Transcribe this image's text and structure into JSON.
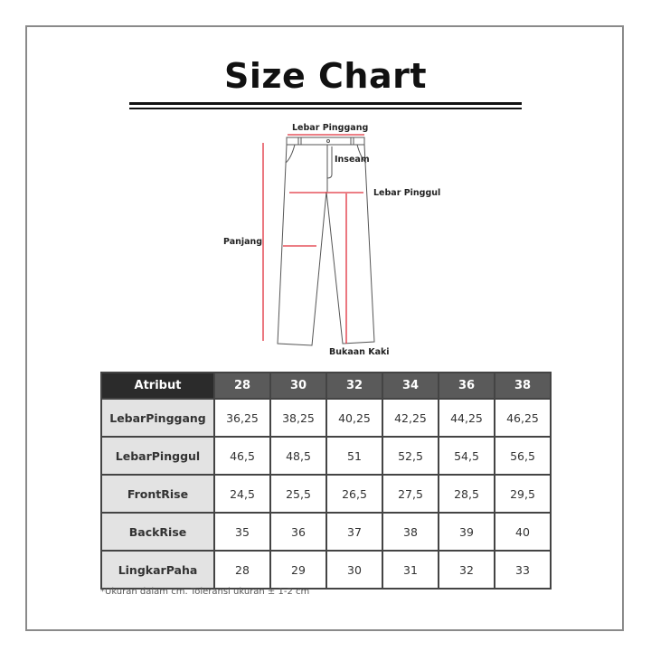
{
  "title": "Size Chart",
  "diagram": {
    "labels": {
      "waist": "Lebar Pinggang",
      "inseam": "Inseam",
      "hip": "Lebar Pinggul",
      "length": "Panjang",
      "leg_opening": "Bukaan Kaki"
    },
    "accent_color": "#e0303c"
  },
  "table": {
    "header": [
      "Atribut",
      "28",
      "30",
      "32",
      "34",
      "36",
      "38"
    ],
    "rows": [
      {
        "label": "LebarPinggang",
        "values": [
          "36,25",
          "38,25",
          "40,25",
          "42,25",
          "44,25",
          "46,25"
        ]
      },
      {
        "label": "LebarPinggul",
        "values": [
          "46,5",
          "48,5",
          "51",
          "52,5",
          "54,5",
          "56,5"
        ]
      },
      {
        "label": "FrontRise",
        "values": [
          "24,5",
          "25,5",
          "26,5",
          "27,5",
          "28,5",
          "29,5"
        ]
      },
      {
        "label": "BackRise",
        "values": [
          "35",
          "36",
          "37",
          "38",
          "39",
          "40"
        ]
      },
      {
        "label": "LingkarPaha",
        "values": [
          "28",
          "29",
          "30",
          "31",
          "32",
          "33"
        ]
      }
    ]
  },
  "note": "*Ukuran dalam cm. Toleransi ukuran ± 1-2 cm"
}
